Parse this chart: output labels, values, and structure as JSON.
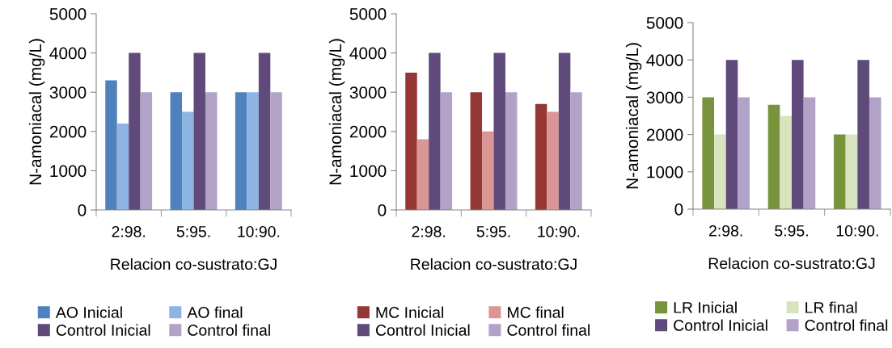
{
  "chart_data": [
    {
      "type": "bar",
      "xlabel": "Relacion co-sustrato:GJ",
      "ylabel": "N-amoniacal (mg/L)",
      "categories": [
        "2:98.",
        "5:95.",
        "10:90."
      ],
      "ylim": [
        0,
        5000
      ],
      "yticks": [
        0,
        1000,
        2000,
        3000,
        4000,
        5000
      ],
      "grid": false,
      "legend": "bottom",
      "series": [
        {
          "name": "AO Inicial",
          "color": "#4f81bd",
          "values": [
            3300,
            3000,
            3000
          ]
        },
        {
          "name": "AO final",
          "color": "#8eb4e3",
          "values": [
            2200,
            2500,
            3000
          ]
        },
        {
          "name": "Control Inicial",
          "color": "#604a7b",
          "values": [
            4000,
            4000,
            4000
          ]
        },
        {
          "name": "Control final",
          "color": "#b3a2c7",
          "values": [
            3000,
            3000,
            3000
          ]
        }
      ]
    },
    {
      "type": "bar",
      "xlabel": "Relacion co-sustrato:GJ",
      "ylabel": "N-amoniacal (mg/L)",
      "categories": [
        "2:98.",
        "5:95.",
        "10:90."
      ],
      "ylim": [
        0,
        5000
      ],
      "yticks": [
        0,
        1000,
        2000,
        3000,
        4000,
        5000
      ],
      "grid": false,
      "legend": "bottom",
      "series": [
        {
          "name": "MC Inicial",
          "color": "#953735",
          "values": [
            3500,
            3000,
            2700
          ]
        },
        {
          "name": "MC final",
          "color": "#d99694",
          "values": [
            1800,
            2000,
            2500
          ]
        },
        {
          "name": "Control Inicial",
          "color": "#604a7b",
          "values": [
            4000,
            4000,
            4000
          ]
        },
        {
          "name": "Control final",
          "color": "#b3a2c7",
          "values": [
            3000,
            3000,
            3000
          ]
        }
      ]
    },
    {
      "type": "bar",
      "xlabel": "Relacion co-sustrato:GJ",
      "ylabel": "N-amoniacal (mg/L)",
      "categories": [
        "2:98.",
        "5:95.",
        "10:90."
      ],
      "ylim": [
        0,
        5000
      ],
      "yticks": [
        0,
        1000,
        2000,
        3000,
        4000,
        5000
      ],
      "grid": false,
      "legend": "bottom",
      "series": [
        {
          "name": "LR Inicial",
          "color": "#77933c",
          "values": [
            3000,
            2800,
            2000
          ]
        },
        {
          "name": "LR final",
          "color": "#d7e4bd",
          "values": [
            2000,
            2500,
            2000
          ]
        },
        {
          "name": "Control Inicial",
          "color": "#604a7b",
          "values": [
            4000,
            4000,
            4000
          ]
        },
        {
          "name": "Control final",
          "color": "#b3a2c7",
          "values": [
            3000,
            3000,
            3000
          ]
        }
      ]
    }
  ]
}
